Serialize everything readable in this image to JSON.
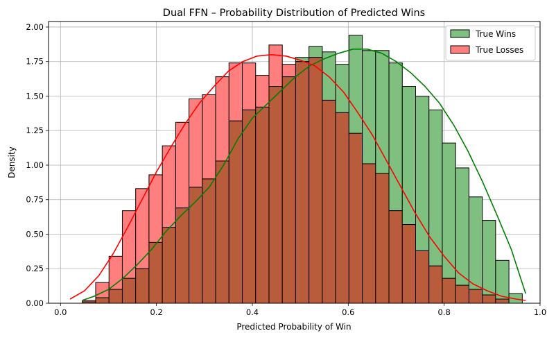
{
  "chart_data": {
    "type": "histogram",
    "title": "Dual FFN – Probability Distribution of Predicted Wins",
    "xlabel": "Predicted Probability of Win",
    "ylabel": "Density",
    "xlim": [
      -0.025,
      1.0
    ],
    "ylim": [
      0,
      2.04
    ],
    "grid": true,
    "legend_position": "top-right",
    "overlap_color": "#b85c3c",
    "x_ticks": [
      {
        "value": 0.0,
        "label": "0.0"
      },
      {
        "value": 0.2,
        "label": "0.2"
      },
      {
        "value": 0.4,
        "label": "0.4"
      },
      {
        "value": 0.6,
        "label": "0.6"
      },
      {
        "value": 0.8,
        "label": "0.8"
      },
      {
        "value": 1.0,
        "label": "1.0"
      }
    ],
    "y_ticks": [
      {
        "value": 0.0,
        "label": "0.00"
      },
      {
        "value": 0.25,
        "label": "0.25"
      },
      {
        "value": 0.5,
        "label": "0.50"
      },
      {
        "value": 0.75,
        "label": "0.75"
      },
      {
        "value": 1.0,
        "label": "1.00"
      },
      {
        "value": 1.25,
        "label": "1.25"
      },
      {
        "value": 1.5,
        "label": "1.50"
      },
      {
        "value": 1.75,
        "label": "1.75"
      },
      {
        "value": 2.0,
        "label": "2.00"
      }
    ],
    "bins": {
      "start": 0.0455,
      "width": 0.0278,
      "count": 33
    },
    "series": [
      {
        "name": "True Wins",
        "fill": "#7fbf7f",
        "line": "#008000",
        "values": [
          0.01,
          0.04,
          0.1,
          0.18,
          0.25,
          0.44,
          0.55,
          0.69,
          0.84,
          0.9,
          1.03,
          1.32,
          1.4,
          1.42,
          1.57,
          1.64,
          1.78,
          1.86,
          1.82,
          1.73,
          1.94,
          1.83,
          1.83,
          1.74,
          1.57,
          1.5,
          1.4,
          1.16,
          0.98,
          0.77,
          0.6,
          0.31,
          0.07
        ],
        "kde": [
          [
            0.045,
            0.02
          ],
          [
            0.07,
            0.05
          ],
          [
            0.1,
            0.1
          ],
          [
            0.13,
            0.18
          ],
          [
            0.16,
            0.28
          ],
          [
            0.19,
            0.39
          ],
          [
            0.22,
            0.52
          ],
          [
            0.25,
            0.63
          ],
          [
            0.28,
            0.73
          ],
          [
            0.31,
            0.84
          ],
          [
            0.34,
            1.0
          ],
          [
            0.37,
            1.19
          ],
          [
            0.4,
            1.34
          ],
          [
            0.43,
            1.44
          ],
          [
            0.46,
            1.54
          ],
          [
            0.49,
            1.64
          ],
          [
            0.52,
            1.72
          ],
          [
            0.55,
            1.77
          ],
          [
            0.58,
            1.81
          ],
          [
            0.61,
            1.84
          ],
          [
            0.64,
            1.84
          ],
          [
            0.67,
            1.81
          ],
          [
            0.7,
            1.75
          ],
          [
            0.73,
            1.67
          ],
          [
            0.76,
            1.57
          ],
          [
            0.79,
            1.45
          ],
          [
            0.82,
            1.29
          ],
          [
            0.85,
            1.1
          ],
          [
            0.88,
            0.88
          ],
          [
            0.91,
            0.64
          ],
          [
            0.94,
            0.39
          ],
          [
            0.97,
            0.07
          ]
        ]
      },
      {
        "name": "True Losses",
        "fill": "#ff7f7f",
        "line": "#ff0000",
        "values": [
          0.02,
          0.15,
          0.34,
          0.67,
          0.83,
          0.93,
          1.14,
          1.31,
          1.48,
          1.51,
          1.64,
          1.74,
          1.74,
          1.65,
          1.87,
          1.73,
          1.75,
          1.78,
          1.47,
          1.38,
          1.23,
          1.01,
          0.94,
          0.67,
          0.57,
          0.38,
          0.27,
          0.18,
          0.13,
          0.1,
          0.06,
          0.03,
          0.0
        ],
        "kde": [
          [
            0.02,
            0.03
          ],
          [
            0.05,
            0.09
          ],
          [
            0.08,
            0.2
          ],
          [
            0.11,
            0.36
          ],
          [
            0.14,
            0.55
          ],
          [
            0.17,
            0.75
          ],
          [
            0.2,
            0.95
          ],
          [
            0.23,
            1.13
          ],
          [
            0.26,
            1.3
          ],
          [
            0.29,
            1.45
          ],
          [
            0.32,
            1.57
          ],
          [
            0.35,
            1.68
          ],
          [
            0.38,
            1.75
          ],
          [
            0.41,
            1.79
          ],
          [
            0.44,
            1.8
          ],
          [
            0.47,
            1.79
          ],
          [
            0.5,
            1.76
          ],
          [
            0.53,
            1.72
          ],
          [
            0.56,
            1.64
          ],
          [
            0.59,
            1.53
          ],
          [
            0.62,
            1.38
          ],
          [
            0.65,
            1.22
          ],
          [
            0.68,
            1.03
          ],
          [
            0.71,
            0.84
          ],
          [
            0.74,
            0.65
          ],
          [
            0.77,
            0.48
          ],
          [
            0.8,
            0.34
          ],
          [
            0.83,
            0.22
          ],
          [
            0.86,
            0.14
          ],
          [
            0.89,
            0.09
          ],
          [
            0.92,
            0.05
          ],
          [
            0.95,
            0.03
          ],
          [
            0.97,
            0.02
          ]
        ]
      }
    ]
  }
}
